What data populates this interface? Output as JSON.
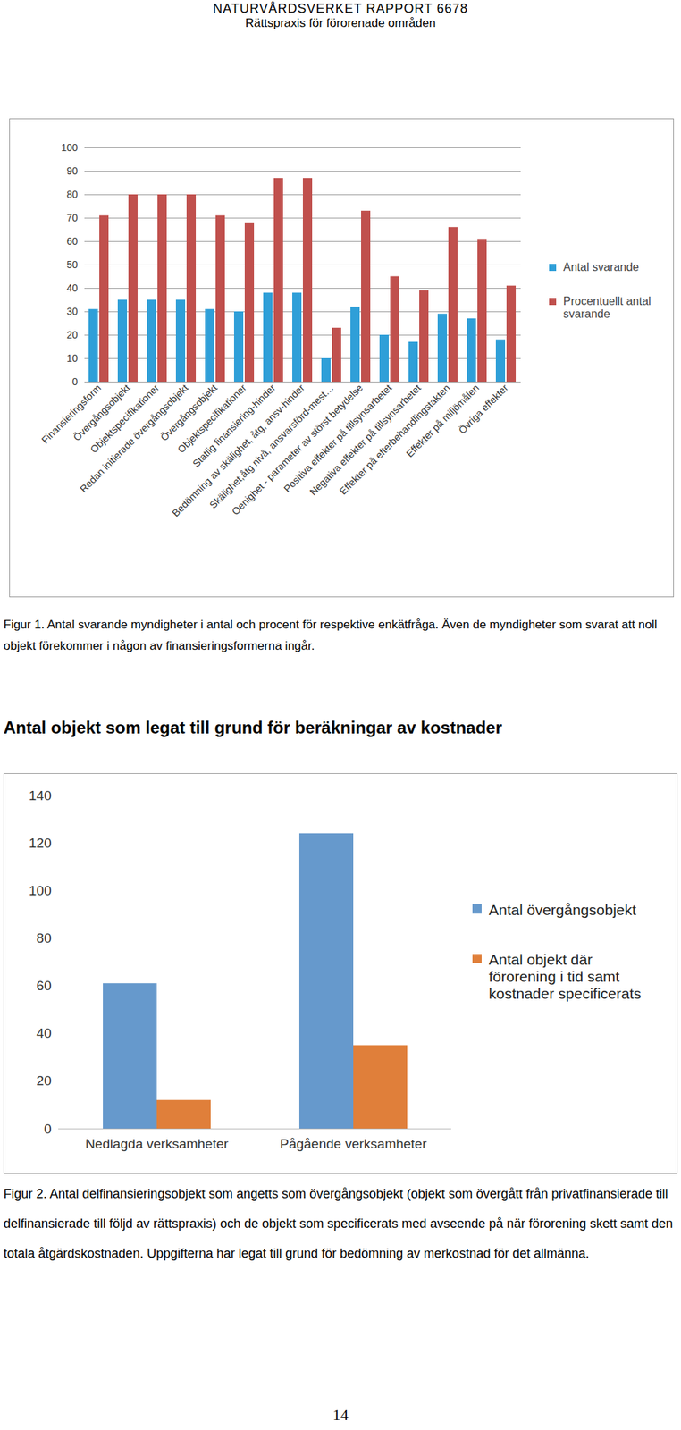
{
  "header": {
    "title": "NATURVÅRDSVERKET RAPPORT 6678",
    "subtitle": "Rättspraxis för förorenade områden"
  },
  "chart_data": [
    {
      "type": "bar",
      "categories": [
        "Finansieringsform",
        "Övergångsobjekt",
        "Objektspecifikationer",
        "Redan initierade övergångsobjekt",
        "Övergångsobjekt",
        "Objektspecifikationer",
        "Statlig finansiering-hinder",
        "Bedömning av skälighet, åtg, ansv-hinder",
        "Skälighet,åtg nivå, ansvarsförd-mest…",
        "Oenighet - parameter av störst betydelse",
        "Positiva effekter på tillsynsarbetet",
        "Negativa effekter på tillsynsarbetet",
        "Effekter på efterbehandlingstakten",
        "Effekter på miljömålen",
        "Övriga effekter"
      ],
      "series": [
        {
          "name": "Antal svarande",
          "color": "#2f9fd8",
          "values": [
            31,
            35,
            35,
            35,
            31,
            30,
            38,
            38,
            10,
            32,
            20,
            17,
            29,
            27,
            18
          ]
        },
        {
          "name": "Procentuellt antal svarande",
          "color": "#c0504d",
          "values": [
            71,
            80,
            80,
            80,
            71,
            68,
            87,
            87,
            23,
            73,
            45,
            39,
            66,
            61,
            41
          ]
        }
      ],
      "ylim": [
        0,
        100
      ],
      "yticks": [
        0,
        10,
        20,
        30,
        40,
        50,
        60,
        70,
        80,
        90,
        100
      ],
      "grid": true,
      "legend": "right"
    },
    {
      "type": "bar",
      "title": "Antal objekt som legat till grund för beräkningar av kostnader",
      "categories": [
        "Nedlagda verksamheter",
        "Pågående verksamheter"
      ],
      "series": [
        {
          "name": "Antal övergångsobjekt",
          "color": "#6699cc",
          "values": [
            61,
            124
          ]
        },
        {
          "name": "Antal objekt där förorening i tid samt kostnader specificerats",
          "color": "#e07f3a",
          "values": [
            12,
            35
          ]
        }
      ],
      "ylim": [
        0,
        140
      ],
      "yticks": [
        0,
        20,
        40,
        60,
        80,
        100,
        120,
        140
      ],
      "grid": false,
      "legend": "right"
    }
  ],
  "captions": [
    "Figur 1. Antal svarande myndigheter i antal och procent för respektive enkätfråga. Även de myndigheter som svarat att noll objekt förekommer i någon av finansieringsformerna ingår.",
    "Figur 2. Antal delfinansieringsobjekt som angetts som övergångsobjekt (objekt som övergått från privatfinansierade till delfinansierade till följd av rättspraxis) och de objekt som specificerats med avseende på när förorening skett samt den totala åtgärdskostnaden. Uppgifterna har legat till grund för bedömning av merkostnad för det allmänna."
  ],
  "page_number": "14"
}
